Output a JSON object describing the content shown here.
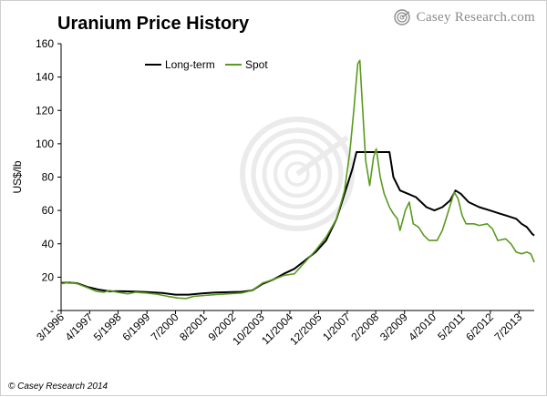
{
  "header": {
    "title": "Uranium Price History",
    "brand": "Casey Research.com",
    "brand_logo_icon": "spiral-logo-icon",
    "credit": "© Casey Research 2014"
  },
  "colors": {
    "long_term": "#000000",
    "spot": "#5a9a1f",
    "axis": "#000000",
    "watermark": "#c8c8c8",
    "brand_gray": "#8a8a8a"
  },
  "chart_data": {
    "type": "line",
    "title": "Uranium Price History",
    "xlabel": "",
    "ylabel": "US$/lb",
    "ylim": [
      0,
      160
    ],
    "yticks": [
      0,
      20,
      40,
      60,
      80,
      100,
      120,
      140,
      160
    ],
    "ytick_labels": [
      "-",
      "20",
      "40",
      "60",
      "80",
      "100",
      "120",
      "140",
      "160"
    ],
    "xlim": [
      1996.17,
      2014.08
    ],
    "xticks": [
      {
        "label": "3/1996",
        "x": 1996.17
      },
      {
        "label": "4/1997",
        "x": 1997.25
      },
      {
        "label": "5/1998",
        "x": 1998.33
      },
      {
        "label": "6/1999",
        "x": 1999.42
      },
      {
        "label": "7/2000",
        "x": 2000.5
      },
      {
        "label": "8/2001",
        "x": 2001.58
      },
      {
        "label": "9/2002",
        "x": 2002.67
      },
      {
        "label": "10/2003",
        "x": 2003.75
      },
      {
        "label": "11/2004",
        "x": 2004.83
      },
      {
        "label": "12/2005",
        "x": 2005.92
      },
      {
        "label": "1/2007",
        "x": 2007.0
      },
      {
        "label": "2/2008",
        "x": 2008.08
      },
      {
        "label": "3/2009",
        "x": 2009.17
      },
      {
        "label": "4/2010",
        "x": 2010.25
      },
      {
        "label": "5/2011",
        "x": 2011.33
      },
      {
        "label": "6/2012",
        "x": 2012.42
      },
      {
        "label": "7/2013",
        "x": 2013.5
      }
    ],
    "legend": {
      "placement": "top-left"
    },
    "grid": false,
    "series": [
      {
        "name": "Long-term",
        "color": "#000000",
        "points": [
          [
            1996.17,
            16.5
          ],
          [
            1996.5,
            16.8
          ],
          [
            1996.8,
            16.2
          ],
          [
            1997.2,
            14.0
          ],
          [
            1997.6,
            12.5
          ],
          [
            1998.0,
            11.5
          ],
          [
            1998.5,
            11.5
          ],
          [
            1999.0,
            11.3
          ],
          [
            1999.5,
            11.0
          ],
          [
            2000.0,
            10.5
          ],
          [
            2000.5,
            9.5
          ],
          [
            2001.0,
            9.5
          ],
          [
            2001.5,
            10.2
          ],
          [
            2002.0,
            10.8
          ],
          [
            2002.5,
            11.0
          ],
          [
            2003.0,
            11.2
          ],
          [
            2003.4,
            12.0
          ],
          [
            2003.8,
            16.0
          ],
          [
            2004.2,
            18.5
          ],
          [
            2004.6,
            22.0
          ],
          [
            2005.0,
            25.0
          ],
          [
            2005.4,
            30.0
          ],
          [
            2005.8,
            35.0
          ],
          [
            2006.2,
            42.0
          ],
          [
            2006.6,
            55.0
          ],
          [
            2007.0,
            75.0
          ],
          [
            2007.2,
            85.0
          ],
          [
            2007.35,
            95.0
          ],
          [
            2008.6,
            95.0
          ],
          [
            2008.75,
            80.0
          ],
          [
            2009.0,
            72.0
          ],
          [
            2009.3,
            70.0
          ],
          [
            2009.6,
            68.0
          ],
          [
            2010.0,
            62.0
          ],
          [
            2010.3,
            60.0
          ],
          [
            2010.6,
            62.0
          ],
          [
            2010.9,
            66.0
          ],
          [
            2011.1,
            72.0
          ],
          [
            2011.3,
            70.0
          ],
          [
            2011.6,
            65.0
          ],
          [
            2012.0,
            62.0
          ],
          [
            2012.4,
            60.0
          ],
          [
            2012.8,
            58.0
          ],
          [
            2013.0,
            57.0
          ],
          [
            2013.4,
            55.0
          ],
          [
            2013.6,
            52.0
          ],
          [
            2013.8,
            50.0
          ],
          [
            2014.0,
            46.0
          ],
          [
            2014.08,
            45.0
          ]
        ]
      },
      {
        "name": "Spot",
        "color": "#5a9a1f",
        "points": [
          [
            1996.17,
            16.0
          ],
          [
            1996.5,
            17.0
          ],
          [
            1996.8,
            16.0
          ],
          [
            1997.2,
            13.5
          ],
          [
            1997.5,
            11.5
          ],
          [
            1997.8,
            11.0
          ],
          [
            1998.0,
            12.0
          ],
          [
            1998.3,
            11.0
          ],
          [
            1998.7,
            10.0
          ],
          [
            1999.0,
            11.0
          ],
          [
            1999.4,
            10.5
          ],
          [
            1999.8,
            9.8
          ],
          [
            2000.2,
            8.5
          ],
          [
            2000.6,
            7.5
          ],
          [
            2000.9,
            7.2
          ],
          [
            2001.2,
            8.5
          ],
          [
            2001.6,
            9.0
          ],
          [
            2002.0,
            9.5
          ],
          [
            2002.5,
            10.0
          ],
          [
            2003.0,
            10.5
          ],
          [
            2003.4,
            12.0
          ],
          [
            2003.8,
            16.5
          ],
          [
            2004.2,
            18.5
          ],
          [
            2004.6,
            21.0
          ],
          [
            2005.0,
            22.0
          ],
          [
            2005.4,
            29.0
          ],
          [
            2005.8,
            36.0
          ],
          [
            2006.2,
            44.0
          ],
          [
            2006.6,
            55.0
          ],
          [
            2006.9,
            72.0
          ],
          [
            2007.1,
            95.0
          ],
          [
            2007.25,
            120.0
          ],
          [
            2007.4,
            148.0
          ],
          [
            2007.48,
            150.0
          ],
          [
            2007.55,
            130.0
          ],
          [
            2007.7,
            90.0
          ],
          [
            2007.85,
            75.0
          ],
          [
            2008.0,
            92.0
          ],
          [
            2008.1,
            97.0
          ],
          [
            2008.25,
            80.0
          ],
          [
            2008.4,
            70.0
          ],
          [
            2008.6,
            62.0
          ],
          [
            2008.75,
            58.0
          ],
          [
            2008.9,
            55.0
          ],
          [
            2009.0,
            48.0
          ],
          [
            2009.2,
            60.0
          ],
          [
            2009.35,
            65.0
          ],
          [
            2009.5,
            52.0
          ],
          [
            2009.7,
            50.0
          ],
          [
            2009.9,
            45.0
          ],
          [
            2010.1,
            42.0
          ],
          [
            2010.4,
            42.0
          ],
          [
            2010.6,
            48.0
          ],
          [
            2010.8,
            58.0
          ],
          [
            2011.05,
            71.0
          ],
          [
            2011.2,
            67.0
          ],
          [
            2011.35,
            57.0
          ],
          [
            2011.5,
            52.0
          ],
          [
            2011.8,
            52.0
          ],
          [
            2012.0,
            51.0
          ],
          [
            2012.3,
            52.0
          ],
          [
            2012.5,
            49.0
          ],
          [
            2012.7,
            42.0
          ],
          [
            2013.0,
            43.0
          ],
          [
            2013.2,
            40.0
          ],
          [
            2013.4,
            35.0
          ],
          [
            2013.6,
            34.0
          ],
          [
            2013.8,
            35.0
          ],
          [
            2013.95,
            34.0
          ],
          [
            2014.08,
            29.0
          ]
        ]
      }
    ]
  }
}
